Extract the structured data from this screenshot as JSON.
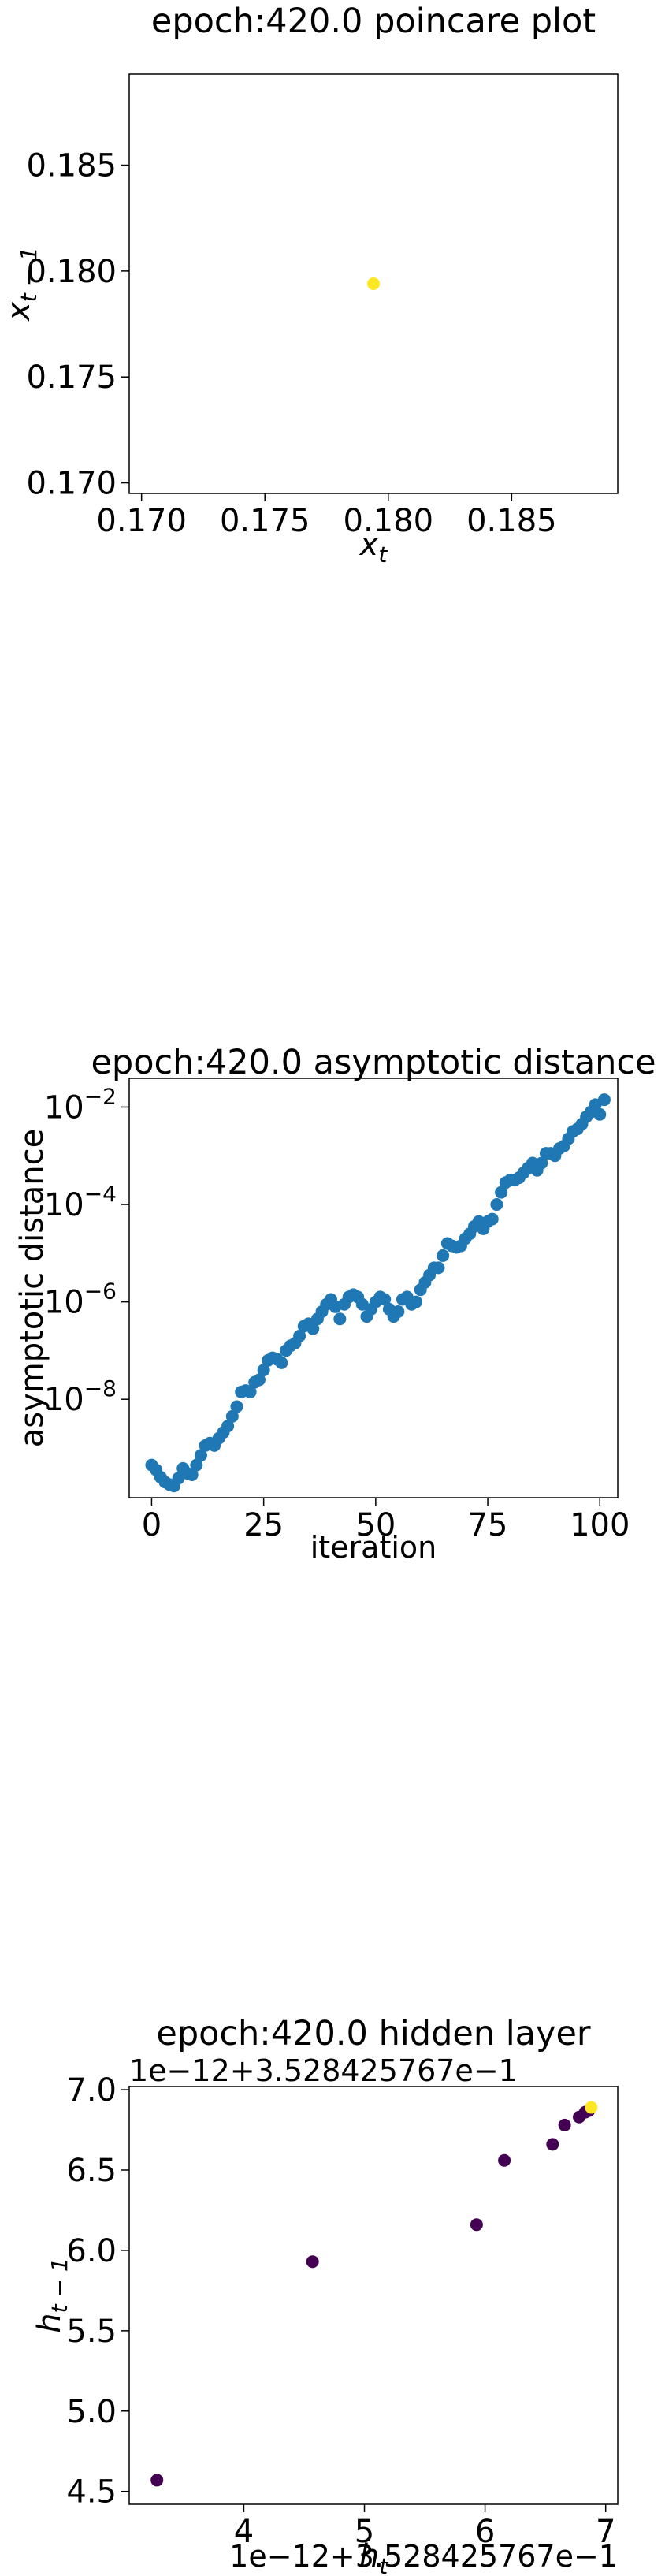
{
  "chart_data": [
    {
      "type": "scatter",
      "title": "epoch:420.0 poincare plot",
      "xlabel": "x_t",
      "ylabel": "x_{t-1}",
      "xlim": [
        0.1695,
        0.1893
      ],
      "ylim": [
        0.1695,
        0.1893
      ],
      "x_ticks": [
        "0.170",
        "0.175",
        "0.180",
        "0.185"
      ],
      "x_tick_values": [
        0.17,
        0.175,
        0.18,
        0.185
      ],
      "y_ticks": [
        "0.170",
        "0.175",
        "0.180",
        "0.185"
      ],
      "y_tick_values": [
        0.17,
        0.175,
        0.18,
        0.185
      ],
      "grid": false,
      "color": "#fde725",
      "points": [
        [
          0.1794,
          0.1794
        ]
      ]
    },
    {
      "type": "scatter",
      "title": "epoch:420.0 asymptotic distance",
      "xlabel": "iteration",
      "ylabel": "asymptotic distance",
      "yscale": "log",
      "xlim": [
        -5,
        104
      ],
      "ylim_log10": [
        -10.02,
        -1.41
      ],
      "x_ticks": [
        "0",
        "25",
        "50",
        "75",
        "100"
      ],
      "x_tick_values": [
        0,
        25,
        50,
        75,
        100
      ],
      "y_ticks": [
        "10^-8",
        "10^-6",
        "10^-4",
        "10^-2"
      ],
      "y_tick_exponents": [
        -8,
        -6,
        -4,
        -2
      ],
      "grid": false,
      "color": "#1f77b4",
      "log10_values": [
        -9.35,
        -9.45,
        -9.6,
        -9.7,
        -9.75,
        -9.78,
        -9.62,
        -9.42,
        -9.52,
        -9.55,
        -9.35,
        -9.15,
        -8.95,
        -8.9,
        -8.95,
        -8.8,
        -8.68,
        -8.55,
        -8.35,
        -8.15,
        -7.85,
        -7.82,
        -7.85,
        -7.65,
        -7.6,
        -7.4,
        -7.2,
        -7.15,
        -7.18,
        -7.25,
        -7.0,
        -6.9,
        -6.85,
        -6.7,
        -6.5,
        -6.45,
        -6.55,
        -6.35,
        -6.2,
        -6.05,
        -5.95,
        -6.1,
        -6.35,
        -6.05,
        -5.9,
        -5.85,
        -5.9,
        -6.05,
        -6.3,
        -6.15,
        -6.0,
        -5.9,
        -5.95,
        -6.15,
        -6.3,
        -6.2,
        -5.95,
        -5.9,
        -6.05,
        -6.0,
        -5.75,
        -5.6,
        -5.45,
        -5.3,
        -5.3,
        -5.05,
        -4.8,
        -4.85,
        -4.88,
        -4.85,
        -4.7,
        -4.6,
        -4.45,
        -4.35,
        -4.5,
        -4.35,
        -4.3,
        -4.0,
        -3.75,
        -3.55,
        -3.5,
        -3.5,
        -3.45,
        -3.35,
        -3.25,
        -3.15,
        -3.3,
        -3.15,
        -2.95,
        -2.95,
        -3.0,
        -2.85,
        -2.8,
        -2.65,
        -2.5,
        -2.45,
        -2.35,
        -2.2,
        -2.1,
        -1.95,
        -2.15,
        -1.85
      ]
    },
    {
      "type": "scatter",
      "title": "epoch:420.0 hidden layer",
      "xlabel": "h_t",
      "ylabel": "h_{t-1}",
      "x_offset_label": "1e−12+3.528425767e−1",
      "y_offset_label": "1e−12+3.528425767e−1",
      "xlim": [
        3.05,
        7.1
      ],
      "ylim": [
        4.42,
        7.02
      ],
      "x_ticks": [
        "4",
        "5",
        "6",
        "7"
      ],
      "x_tick_values": [
        4,
        5,
        6,
        7
      ],
      "y_ticks": [
        "4.5",
        "5.0",
        "5.5",
        "6.0",
        "6.5",
        "7.0"
      ],
      "y_tick_values": [
        4.5,
        5.0,
        5.5,
        6.0,
        6.5,
        7.0
      ],
      "grid": false,
      "colors": {
        "dark": "#440154",
        "bright": "#fde725"
      },
      "points": [
        {
          "x": 3.28,
          "y": 4.57,
          "c": "dark"
        },
        {
          "x": 4.57,
          "y": 5.93,
          "c": "dark"
        },
        {
          "x": 5.93,
          "y": 6.16,
          "c": "dark"
        },
        {
          "x": 6.16,
          "y": 6.56,
          "c": "dark"
        },
        {
          "x": 6.56,
          "y": 6.66,
          "c": "dark"
        },
        {
          "x": 6.66,
          "y": 6.78,
          "c": "dark"
        },
        {
          "x": 6.78,
          "y": 6.83,
          "c": "dark"
        },
        {
          "x": 6.83,
          "y": 6.86,
          "c": "dark"
        },
        {
          "x": 6.86,
          "y": 6.87,
          "c": "dark"
        },
        {
          "x": 6.88,
          "y": 6.89,
          "c": "bright"
        }
      ]
    }
  ]
}
